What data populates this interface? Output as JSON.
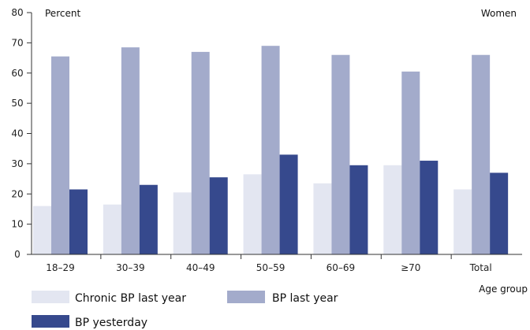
{
  "chart_data": {
    "type": "bar",
    "title": "",
    "subtitle": "Women",
    "ylabel": "Percent",
    "xlabel": "Age group",
    "ylim": [
      0,
      80
    ],
    "yticks": [
      0,
      10,
      20,
      30,
      40,
      50,
      60,
      70,
      80
    ],
    "grid": false,
    "legend_position": "bottom",
    "categories": [
      "18–29",
      "30–39",
      "40–49",
      "50–59",
      "60–69",
      "≥70",
      "Total"
    ],
    "series": [
      {
        "name": "Chronic BP last year",
        "color": "#e3e6f1",
        "values": [
          16,
          16.5,
          20.5,
          26.5,
          23.5,
          29.5,
          21.5
        ]
      },
      {
        "name": "BP last year",
        "color": "#a3abcb",
        "values": [
          65.5,
          68.5,
          67,
          69,
          66,
          60.5,
          66
        ]
      },
      {
        "name": "BP yesterday",
        "color": "#36498d",
        "values": [
          21.5,
          23,
          25.5,
          33,
          29.5,
          31,
          27
        ]
      }
    ]
  }
}
